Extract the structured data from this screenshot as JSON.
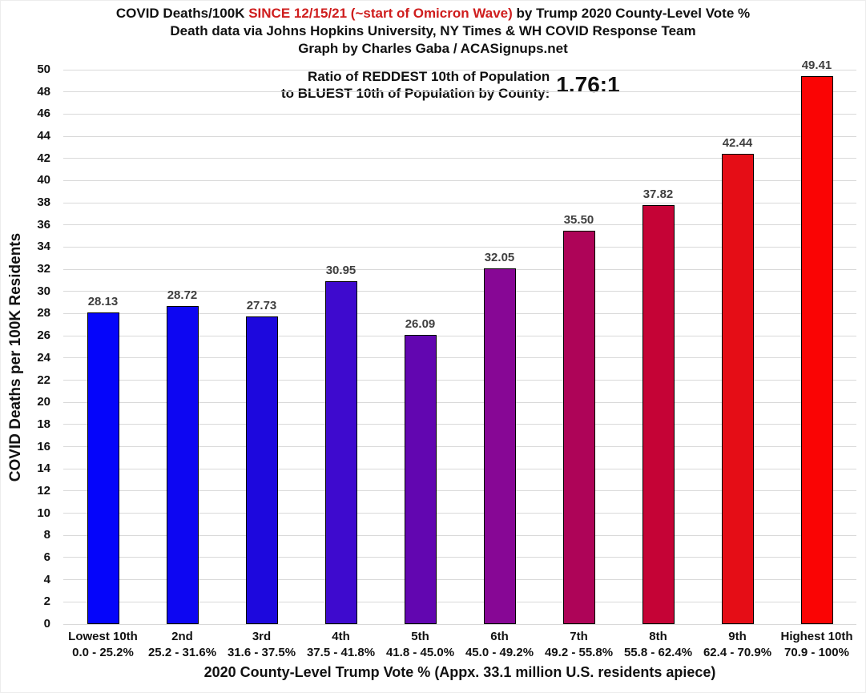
{
  "title": {
    "part1": "COVID Deaths/100K ",
    "highlight": "SINCE 12/15/21 (~start of Omicron Wave)",
    "part2": " by Trump 2020 County-Level Vote %",
    "highlight_color": "#cf1d1d",
    "line2": "Death data via Johns Hopkins University, NY Times & WH COVID Response Team",
    "line3": "Graph by Charles Gaba / ACASignups.net"
  },
  "annotation": {
    "line1": "Ratio of REDDEST 10th of Population",
    "line2": "to BLUEST 10th of Population by County:",
    "ratio": "1.76:1"
  },
  "chart_data": {
    "type": "bar",
    "title": "COVID Deaths/100K SINCE 12/15/21 (~start of Omicron Wave) by Trump 2020 County-Level Vote %",
    "subtitle": "Death data via Johns Hopkins University, NY Times & WH COVID Response Team",
    "credit": "Graph by Charles Gaba / ACASignups.net",
    "xlabel": "2020 County-Level Trump Vote % (Appx. 33.1 million U.S. residents apiece)",
    "ylabel": "COVID Deaths per 100K Residents",
    "ylim": [
      0,
      50
    ],
    "ytick_step": 2,
    "grid": true,
    "legend": "none",
    "categories": [
      "Lowest 10th",
      "2nd",
      "3rd",
      "4th",
      "5th",
      "6th",
      "7th",
      "8th",
      "9th",
      "Highest 10th"
    ],
    "category_ranges": [
      "0.0 - 25.2%",
      "25.2 - 31.6%",
      "31.6 - 37.5%",
      "37.5 - 41.8%",
      "41.8 - 45.0%",
      "45.0 - 49.2%",
      "49.2 - 55.8%",
      "55.8 - 62.4%",
      "62.4 - 70.9%",
      "70.9 - 100%"
    ],
    "values": [
      28.13,
      28.72,
      27.73,
      30.95,
      26.09,
      32.05,
      35.5,
      37.82,
      42.44,
      49.41
    ],
    "bar_colors": [
      "#0505fa",
      "#0d06f2",
      "#1d08dd",
      "#3e0ace",
      "#6206b0",
      "#870795",
      "#ae0458",
      "#c50336",
      "#e50d16",
      "#fa0404"
    ],
    "gridline_color": "#d9d9d9",
    "value_label_color": "#3f3f3f",
    "annotation": "Ratio of REDDEST 10th of Population to BLUEST 10th of Population by County: 1.76:1"
  }
}
